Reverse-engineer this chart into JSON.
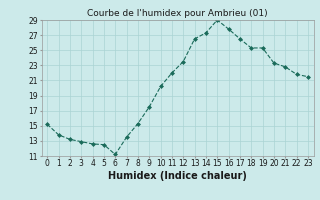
{
  "x": [
    0,
    1,
    2,
    3,
    4,
    5,
    6,
    7,
    8,
    9,
    10,
    11,
    12,
    13,
    14,
    15,
    16,
    17,
    18,
    19,
    20,
    21,
    22,
    23
  ],
  "y": [
    15.2,
    13.8,
    13.2,
    12.9,
    12.6,
    12.5,
    11.2,
    13.5,
    15.3,
    17.5,
    20.2,
    22.0,
    23.5,
    26.5,
    27.3,
    29.0,
    27.8,
    26.5,
    25.3,
    25.3,
    23.3,
    22.8,
    21.8,
    21.5
  ],
  "title": "Courbe de l'humidex pour Ambrieu (01)",
  "xlabel": "Humidex (Indice chaleur)",
  "ylabel": "",
  "ylim": [
    11,
    29
  ],
  "xlim": [
    -0.5,
    23.5
  ],
  "yticks": [
    11,
    13,
    15,
    17,
    19,
    21,
    23,
    25,
    27,
    29
  ],
  "xticks": [
    0,
    1,
    2,
    3,
    4,
    5,
    6,
    7,
    8,
    9,
    10,
    11,
    12,
    13,
    14,
    15,
    16,
    17,
    18,
    19,
    20,
    21,
    22,
    23
  ],
  "line_color": "#1a6b5a",
  "marker": "D",
  "marker_size": 2.0,
  "bg_color": "#cceaea",
  "grid_color": "#aad4d4",
  "title_fontsize": 6.5,
  "label_fontsize": 7,
  "tick_fontsize": 5.5
}
